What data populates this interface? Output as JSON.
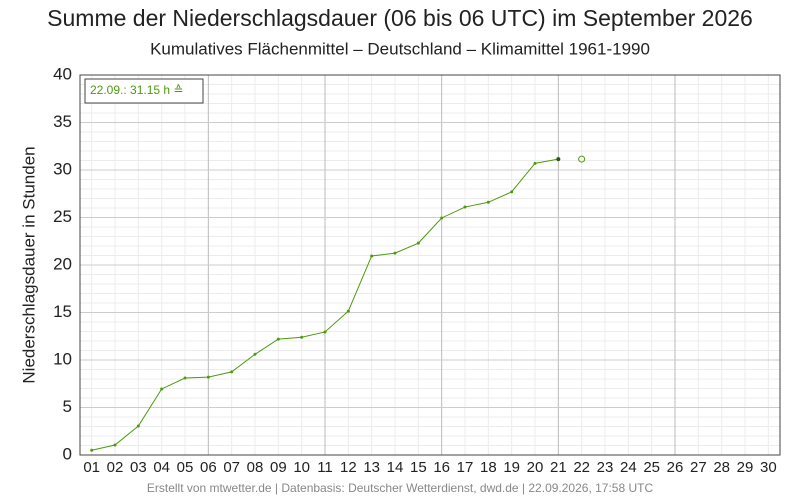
{
  "chart_data": {
    "type": "line",
    "title": "Summe der Niederschlagsdauer (06 bis 06 UTC) im September 2026",
    "subtitle": "Kumulatives Flächenmittel – Deutschland – Klimamittel 1961-1990",
    "y_label": "Niederschlagsdauer in Stunden",
    "annotation": "22.09.: 31.15 h ≙",
    "footer": "Erstellt von mtwetter.de | Datenbasis: Deutscher Wetterdienst, dwd.de | 22.09.2026, 17:58 UTC",
    "categories": [
      "01",
      "02",
      "03",
      "04",
      "05",
      "06",
      "07",
      "08",
      "09",
      "10",
      "11",
      "12",
      "13",
      "14",
      "15",
      "16",
      "17",
      "18",
      "19",
      "20",
      "21",
      "22",
      "23",
      "24",
      "25",
      "26",
      "27",
      "28",
      "29",
      "30"
    ],
    "series": [
      {
        "color": "#4d9a0f",
        "values": [
          0.5,
          1.05,
          3.05,
          6.95,
          8.1,
          8.2,
          8.75,
          10.6,
          12.2,
          12.4,
          12.95,
          15.15,
          20.95,
          21.25,
          22.3,
          24.95,
          26.1,
          26.6,
          27.7,
          30.7,
          31.15,
          null,
          null,
          null,
          null,
          null,
          null,
          null,
          null,
          null
        ]
      },
      {
        "color": "#4d9a0f",
        "marker": "open",
        "values": [
          null,
          null,
          null,
          null,
          null,
          null,
          null,
          null,
          null,
          null,
          null,
          null,
          null,
          null,
          null,
          null,
          null,
          null,
          null,
          null,
          null,
          31.15,
          null,
          null,
          null,
          null,
          null,
          null,
          null,
          null
        ]
      }
    ],
    "ylim": [
      0,
      40
    ],
    "yticks": [
      0,
      5,
      10,
      15,
      20,
      25,
      30,
      35,
      40
    ],
    "y_minor_step": 1,
    "grid": true
  }
}
